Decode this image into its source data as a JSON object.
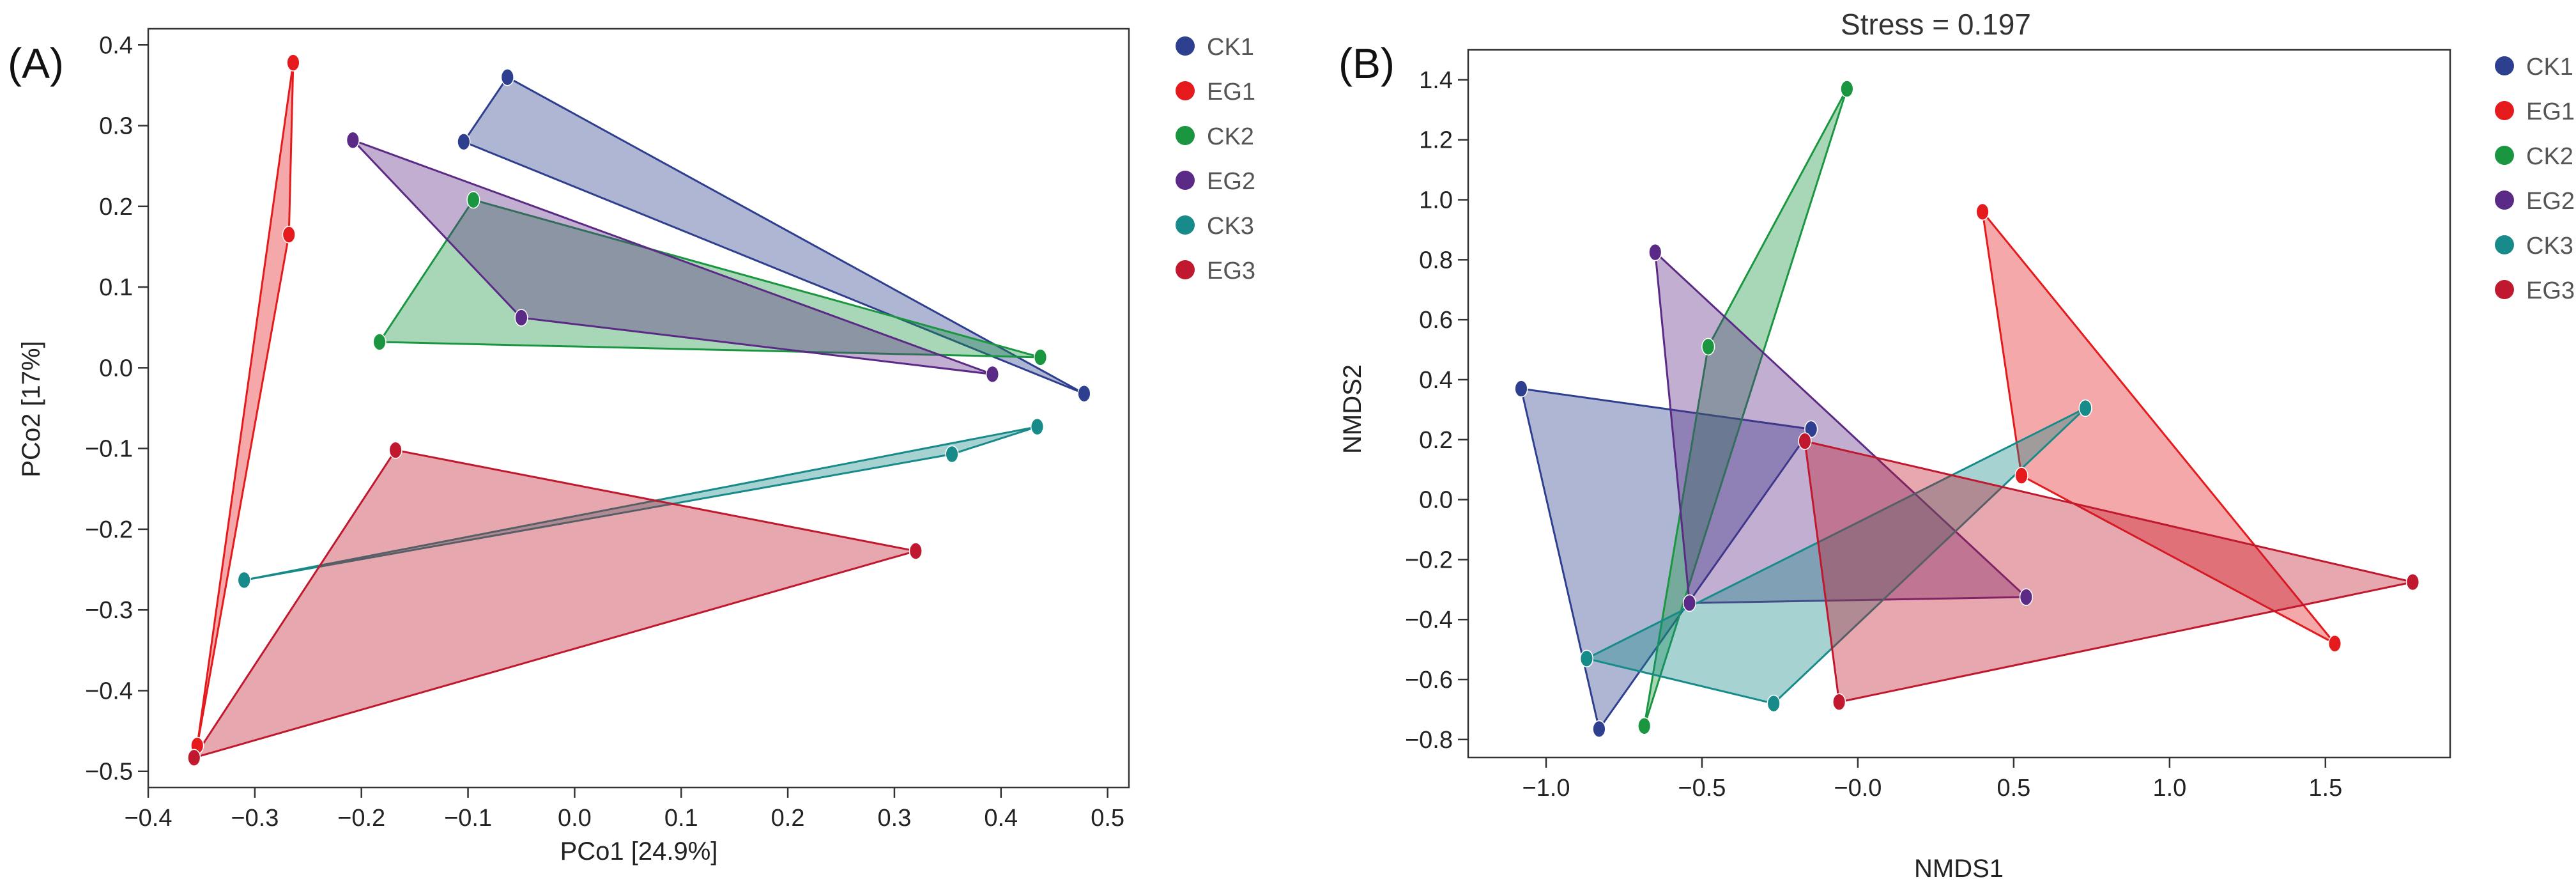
{
  "chart_data": [
    {
      "type": "scatter",
      "panel_label": "(A)",
      "title": "",
      "xlabel": "PCo1 [24.9%]",
      "ylabel": "PCo2 [17%]",
      "xlim": [
        -0.4,
        0.52
      ],
      "ylim": [
        -0.52,
        0.42
      ],
      "xticks": [
        -0.4,
        -0.3,
        -0.2,
        -0.1,
        0.0,
        0.1,
        0.2,
        0.3,
        0.4,
        0.5
      ],
      "xtick_labels": [
        "−0.4",
        "−0.3",
        "−0.2",
        "−0.1",
        "0.0",
        "0.1",
        "0.2",
        "0.3",
        "0.4",
        "0.5"
      ],
      "yticks": [
        0.4,
        0.3,
        0.2,
        0.1,
        0.0,
        -0.1,
        -0.2,
        -0.3,
        -0.4,
        -0.5
      ],
      "ytick_labels": [
        "0.4",
        "0.3",
        "0.2",
        "0.1",
        "0.0",
        "−0.1",
        "−0.2",
        "−0.3",
        "−0.4",
        "−0.5"
      ],
      "grid": false,
      "legend_position": "right",
      "series": [
        {
          "name": "CK1",
          "color": "#2e3f8f",
          "points": [
            [
              -0.063,
              0.36
            ],
            [
              -0.104,
              0.28
            ],
            [
              0.478,
              -0.032
            ]
          ]
        },
        {
          "name": "EG1",
          "color": "#e41a1c",
          "points": [
            [
              -0.264,
              0.378
            ],
            [
              -0.268,
              0.165
            ],
            [
              -0.354,
              -0.468
            ]
          ]
        },
        {
          "name": "CK2",
          "color": "#1a9641",
          "points": [
            [
              -0.095,
              0.208
            ],
            [
              -0.183,
              0.032
            ],
            [
              0.437,
              0.013
            ]
          ]
        },
        {
          "name": "EG2",
          "color": "#5b2a86",
          "points": [
            [
              -0.208,
              0.282
            ],
            [
              -0.05,
              0.062
            ],
            [
              0.392,
              -0.008
            ]
          ]
        },
        {
          "name": "CK3",
          "color": "#178a8a",
          "points": [
            [
              0.434,
              -0.073
            ],
            [
              0.354,
              -0.107
            ],
            [
              -0.31,
              -0.263
            ]
          ]
        },
        {
          "name": "EG3",
          "color": "#c0182e",
          "points": [
            [
              -0.168,
              -0.102
            ],
            [
              0.32,
              -0.227
            ],
            [
              -0.357,
              -0.483
            ]
          ]
        }
      ]
    },
    {
      "type": "scatter",
      "panel_label": "(B)",
      "title": "Stress = 0.197",
      "xlabel": "NMDS1",
      "ylabel": "NMDS2",
      "xlim": [
        -1.25,
        1.9
      ],
      "ylim": [
        -0.86,
        1.5
      ],
      "xticks": [
        -1.0,
        -0.5,
        0.0,
        0.5,
        1.0,
        1.5
      ],
      "xtick_labels": [
        "−1.0",
        "−0.5",
        "−0.0",
        "0.5",
        "1.0",
        "1.5"
      ],
      "yticks": [
        1.4,
        1.2,
        1.0,
        0.8,
        0.6,
        0.4,
        0.2,
        0.0,
        -0.2,
        -0.4,
        -0.6,
        -0.8
      ],
      "ytick_labels": [
        "1.4",
        "1.2",
        "1.0",
        "0.8",
        "0.6",
        "0.4",
        "0.2",
        "0.0",
        "−0.2",
        "−0.4",
        "−0.6",
        "−0.8"
      ],
      "grid": false,
      "legend_position": "right",
      "series": [
        {
          "name": "CK1",
          "color": "#2e3f8f",
          "points": [
            [
              -1.08,
              0.37
            ],
            [
              -0.15,
              0.235
            ],
            [
              -0.83,
              -0.765
            ]
          ]
        },
        {
          "name": "EG1",
          "color": "#e41a1c",
          "points": [
            [
              0.4,
              0.96
            ],
            [
              0.525,
              0.08
            ],
            [
              1.53,
              -0.48
            ]
          ]
        },
        {
          "name": "CK2",
          "color": "#1a9641",
          "points": [
            [
              -0.035,
              1.37
            ],
            [
              -0.48,
              0.51
            ],
            [
              -0.685,
              -0.755
            ]
          ]
        },
        {
          "name": "EG2",
          "color": "#5b2a86",
          "points": [
            [
              -0.65,
              0.825
            ],
            [
              0.54,
              -0.325
            ],
            [
              -0.54,
              -0.345
            ]
          ]
        },
        {
          "name": "CK3",
          "color": "#178a8a",
          "points": [
            [
              0.73,
              0.305
            ],
            [
              -0.87,
              -0.53
            ],
            [
              -0.27,
              -0.68
            ]
          ]
        },
        {
          "name": "EG3",
          "color": "#c0182e",
          "points": [
            [
              -0.17,
              0.195
            ],
            [
              1.78,
              -0.275
            ],
            [
              -0.06,
              -0.675
            ]
          ]
        }
      ]
    }
  ]
}
